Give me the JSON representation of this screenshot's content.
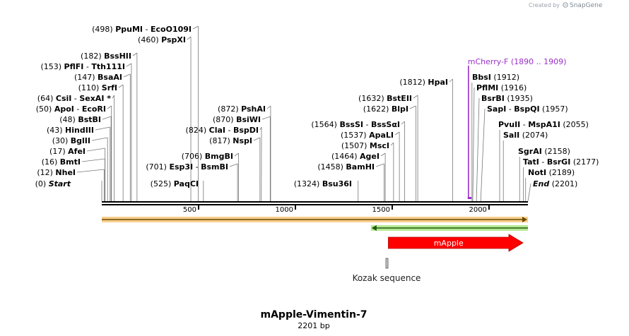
{
  "branding": {
    "created_by": "Created by",
    "product": "SnapGene"
  },
  "map": {
    "title": "mApple-Vimentin-7",
    "length_label": "2201 bp",
    "length": 2201,
    "ticks": [
      {
        "value": 500,
        "label": "500"
      },
      {
        "value": 1000,
        "label": "1000"
      },
      {
        "value": 1500,
        "label": "1500"
      },
      {
        "value": 2000,
        "label": "2000"
      }
    ]
  },
  "sites": [
    {
      "pos": 0,
      "pos_label": "(0)",
      "names": [
        "Start"
      ],
      "italic": true
    },
    {
      "pos": 12,
      "pos_label": "(12)",
      "names": [
        "NheI"
      ]
    },
    {
      "pos": 16,
      "pos_label": "(16)",
      "names": [
        "BmtI"
      ]
    },
    {
      "pos": 17,
      "pos_label": "(17)",
      "names": [
        "AfeI"
      ]
    },
    {
      "pos": 30,
      "pos_label": "(30)",
      "names": [
        "BglII"
      ]
    },
    {
      "pos": 43,
      "pos_label": "(43)",
      "names": [
        "HindIII"
      ]
    },
    {
      "pos": 48,
      "pos_label": "(48)",
      "names": [
        "BstBI"
      ]
    },
    {
      "pos": 50,
      "pos_label": "(50)",
      "names": [
        "ApoI",
        "EcoRI"
      ]
    },
    {
      "pos": 64,
      "pos_label": "(64)",
      "names": [
        "CsiI",
        "SexAI *"
      ]
    },
    {
      "pos": 110,
      "pos_label": "(110)",
      "names": [
        "SrfI"
      ]
    },
    {
      "pos": 147,
      "pos_label": "(147)",
      "names": [
        "BsaAI"
      ]
    },
    {
      "pos": 153,
      "pos_label": "(153)",
      "names": [
        "PflFI",
        "Tth111I"
      ]
    },
    {
      "pos": 182,
      "pos_label": "(182)",
      "names": [
        "BssHII"
      ]
    },
    {
      "pos": 460,
      "pos_label": "(460)",
      "names": [
        "PspXI"
      ]
    },
    {
      "pos": 498,
      "pos_label": "(498)",
      "names": [
        "PpuMI",
        "EcoO109I"
      ]
    },
    {
      "pos": 525,
      "pos_label": "(525)",
      "names": [
        "PaqCI"
      ]
    },
    {
      "pos": 701,
      "pos_label": "(701)",
      "names": [
        "Esp3I",
        "BsmBI"
      ]
    },
    {
      "pos": 706,
      "pos_label": "(706)",
      "names": [
        "BmgBI"
      ]
    },
    {
      "pos": 817,
      "pos_label": "(817)",
      "names": [
        "NspI"
      ]
    },
    {
      "pos": 824,
      "pos_label": "(824)",
      "names": [
        "ClaI",
        "BspDI"
      ]
    },
    {
      "pos": 870,
      "pos_label": "(870)",
      "names": [
        "BsiWI"
      ]
    },
    {
      "pos": 872,
      "pos_label": "(872)",
      "names": [
        "PshAI"
      ]
    },
    {
      "pos": 1324,
      "pos_label": "(1324)",
      "names": [
        "Bsu36I"
      ]
    },
    {
      "pos": 1458,
      "pos_label": "(1458)",
      "names": [
        "BamHI"
      ]
    },
    {
      "pos": 1464,
      "pos_label": "(1464)",
      "names": [
        "AgeI"
      ]
    },
    {
      "pos": 1507,
      "pos_label": "(1507)",
      "names": [
        "MscI"
      ]
    },
    {
      "pos": 1537,
      "pos_label": "(1537)",
      "names": [
        "ApaLI"
      ]
    },
    {
      "pos": 1564,
      "pos_label": "(1564)",
      "names": [
        "BssSI",
        "BssSαI"
      ]
    },
    {
      "pos": 1622,
      "pos_label": "(1622)",
      "names": [
        "BlpI"
      ]
    },
    {
      "pos": 1632,
      "pos_label": "(1632)",
      "names": [
        "BstEII"
      ]
    },
    {
      "pos": 1812,
      "pos_label": "(1812)",
      "names": [
        "HpaI"
      ]
    },
    {
      "pos": 1912,
      "pos_label": "(1912)",
      "names": [
        "BbsI"
      ]
    },
    {
      "pos": 1916,
      "pos_label": "(1916)",
      "names": [
        "PflMI"
      ]
    },
    {
      "pos": 1935,
      "pos_label": "(1935)",
      "names": [
        "BsrBI"
      ]
    },
    {
      "pos": 1957,
      "pos_label": "(1957)",
      "names": [
        "SapI",
        "BspQI"
      ]
    },
    {
      "pos": 2055,
      "pos_label": "(2055)",
      "names": [
        "PvuII",
        "MspA1I"
      ]
    },
    {
      "pos": 2074,
      "pos_label": "(2074)",
      "names": [
        "SalI"
      ]
    },
    {
      "pos": 2158,
      "pos_label": "(2158)",
      "names": [
        "SgrAI"
      ]
    },
    {
      "pos": 2177,
      "pos_label": "(2177)",
      "names": [
        "TatI",
        "BsrGI"
      ]
    },
    {
      "pos": 2189,
      "pos_label": "(2189)",
      "names": [
        "NotI"
      ]
    },
    {
      "pos": 2201,
      "pos_label": "(2201)",
      "names": [
        "End"
      ],
      "italic": true
    }
  ],
  "primer": {
    "name": "mCherry-F",
    "range_label": "(1890 .. 1909)",
    "start": 1890,
    "end": 1909,
    "color": "#9b2fc9"
  },
  "features": [
    {
      "name": "",
      "kind": "span",
      "start": 0,
      "end": 2201,
      "direction": "forward",
      "color": "#f0a830"
    },
    {
      "name": "",
      "kind": "span",
      "start": 1390,
      "end": 2201,
      "direction": "reverse",
      "color": "#9adf6a"
    },
    {
      "name": "mApple",
      "kind": "cds",
      "start": 1480,
      "end": 2201,
      "direction": "forward",
      "color": "#ff0000"
    },
    {
      "name": "Kozak sequence",
      "kind": "misc",
      "start": 1471,
      "end": 1480,
      "direction": "none",
      "color": "#c8c8c8"
    }
  ]
}
